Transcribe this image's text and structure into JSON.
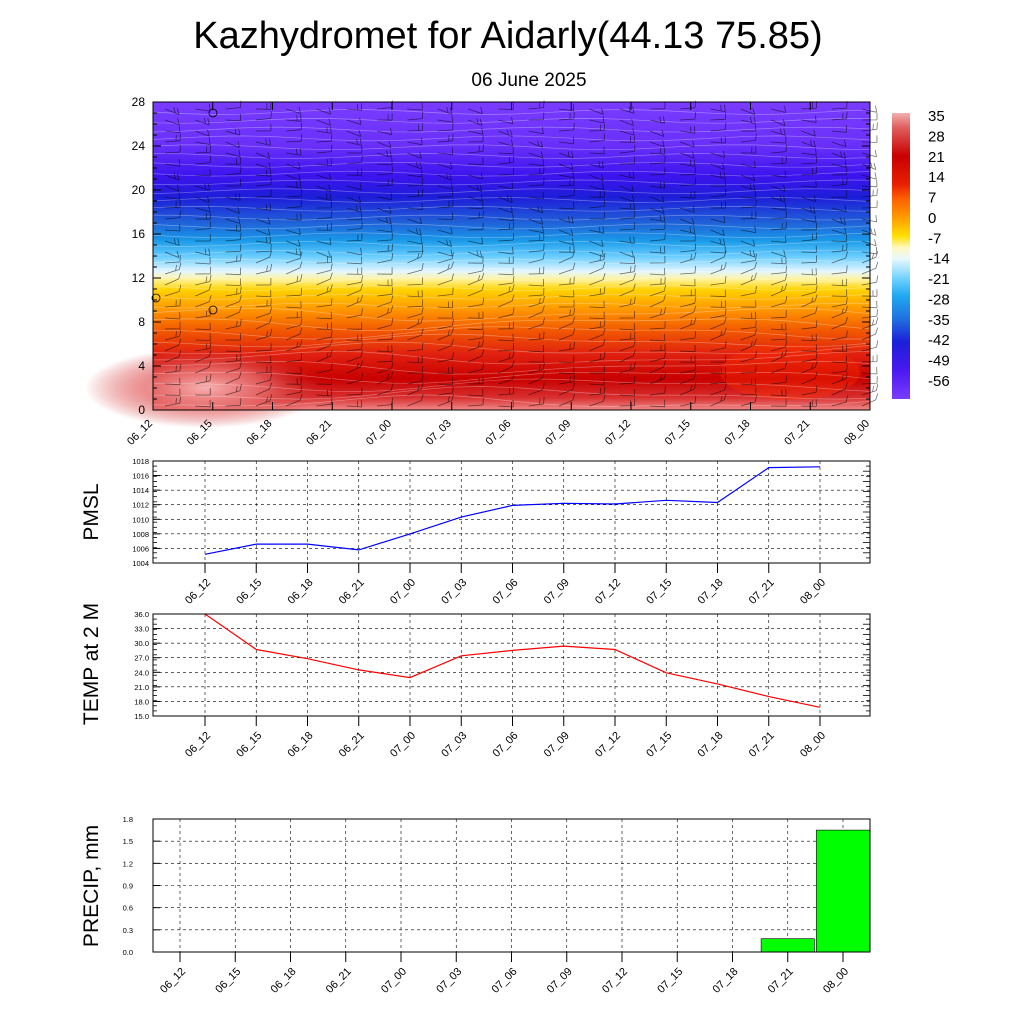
{
  "header": {
    "title": "Kazhydromet for Aidarly(44.13 75.85)",
    "subtitle": "06 June 2025"
  },
  "colors": {
    "pmsl_line": "#0000ff",
    "temp_line": "#ff0000",
    "precip_bar": "#00ff00",
    "grid": "#000000"
  },
  "chart_data": [
    {
      "type": "heatmap",
      "title": "Kazhydromet for Aidarly(44.13 75.85)",
      "subtitle": "06 June 2025",
      "x_categories": [
        "06_12",
        "06_15",
        "06_18",
        "06_21",
        "07_00",
        "07_03",
        "07_06",
        "07_09",
        "07_12",
        "07_15",
        "07_18",
        "07_21",
        "08_00"
      ],
      "y_ticks": [
        0,
        4,
        8,
        12,
        16,
        20,
        24,
        28
      ],
      "ylim": [
        0,
        28
      ],
      "colorbar_labels": [
        "35",
        "28",
        "21",
        "14",
        "7",
        "0",
        "-7",
        "-14",
        "-21",
        "-28",
        "-35",
        "-42",
        "-49",
        "-56"
      ],
      "overlay": "wind barbs"
    },
    {
      "type": "line",
      "ylabel": "PMSL",
      "x_categories": [
        "06_12",
        "06_15",
        "06_18",
        "06_21",
        "07_00",
        "07_03",
        "07_06",
        "07_09",
        "07_12",
        "07_15",
        "07_18",
        "07_21",
        "08_00"
      ],
      "y_ticks": [
        "1004",
        "1006",
        "1008",
        "1010",
        "1012",
        "1014",
        "1016",
        "1018"
      ],
      "ylim": [
        1004,
        1018
      ],
      "grid": true,
      "series": [
        {
          "values": [
            1005.2,
            1006.6,
            1006.6,
            1005.8,
            1008.0,
            1010.3,
            1011.9,
            1012.2,
            1012.1,
            1012.6,
            1012.3,
            1017.1,
            1017.2
          ]
        }
      ]
    },
    {
      "type": "line",
      "ylabel": "TEMP at 2 M",
      "x_categories": [
        "06_12",
        "06_15",
        "06_18",
        "06_21",
        "07_00",
        "07_03",
        "07_06",
        "07_09",
        "07_12",
        "07_15",
        "07_18",
        "07_21",
        "08_00"
      ],
      "y_ticks": [
        "15.0",
        "18.0",
        "21.0",
        "24.0",
        "27.0",
        "30.0",
        "33.0",
        "36.0"
      ],
      "ylim": [
        15,
        36
      ],
      "grid": true,
      "series": [
        {
          "values": [
            36.0,
            28.7,
            26.8,
            24.5,
            22.9,
            27.4,
            28.5,
            29.4,
            28.7,
            23.9,
            21.6,
            19.0,
            16.8
          ]
        }
      ]
    },
    {
      "type": "bar",
      "ylabel": "PRECIP, mm",
      "x_categories": [
        "06_12",
        "06_15",
        "06_18",
        "06_21",
        "07_00",
        "07_03",
        "07_06",
        "07_09",
        "07_12",
        "07_15",
        "07_18",
        "07_21",
        "08_00"
      ],
      "y_ticks": [
        "0.0",
        "0.3",
        "0.6",
        "0.9",
        "1.2",
        "1.5",
        "1.8"
      ],
      "ylim": [
        0,
        1.8
      ],
      "grid": true,
      "values": [
        0,
        0,
        0,
        0,
        0,
        0,
        0,
        0,
        0,
        0,
        0,
        0.18,
        1.65
      ]
    }
  ]
}
